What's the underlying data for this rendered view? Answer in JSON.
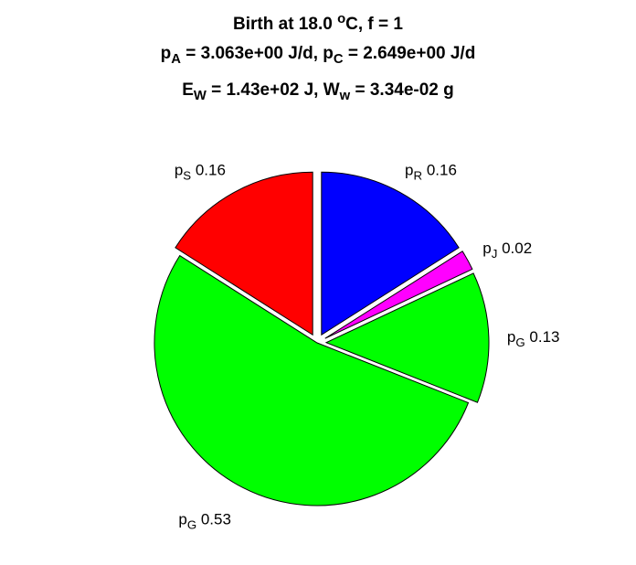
{
  "chart_data": {
    "type": "pie",
    "title_lines": [
      [
        {
          "t": "Birth at 18.0 "
        },
        {
          "t": "o",
          "sup": true
        },
        {
          "t": "C, f = 1"
        }
      ],
      [
        {
          "t": "p"
        },
        {
          "t": "A",
          "sub": true
        },
        {
          "t": " = 3.063e+00 J/d, p"
        },
        {
          "t": "C",
          "sub": true
        },
        {
          "t": " = 2.649e+00 J/d"
        }
      ],
      [
        {
          "t": "E"
        },
        {
          "t": "W",
          "sub": true
        },
        {
          "t": " = 1.43e+02 J, W"
        },
        {
          "t": "w",
          "sub": true
        },
        {
          "t": " = 3.34e-02 g"
        }
      ]
    ],
    "slices": [
      {
        "symbol": "p",
        "sub": "R",
        "value_label": "0.16",
        "value": 0.16,
        "color": "#0000ff",
        "exploded": true
      },
      {
        "symbol": "p",
        "sub": "J",
        "value_label": "0.02",
        "value": 0.02,
        "color": "#ff00ff",
        "exploded": true
      },
      {
        "symbol": "p",
        "sub": "G",
        "value_label": "0.13",
        "value": 0.13,
        "color": "#00ff00",
        "exploded": true
      },
      {
        "symbol": "p",
        "sub": "G",
        "value_label": "0.53",
        "value": 0.53,
        "color": "#00ff00",
        "exploded": false
      },
      {
        "symbol": "p",
        "sub": "S",
        "value_label": "0.16",
        "value": 0.16,
        "color": "#ff0000",
        "exploded": true
      }
    ],
    "direction": "clockwise",
    "start_angle_deg": 90,
    "legend": "none"
  }
}
